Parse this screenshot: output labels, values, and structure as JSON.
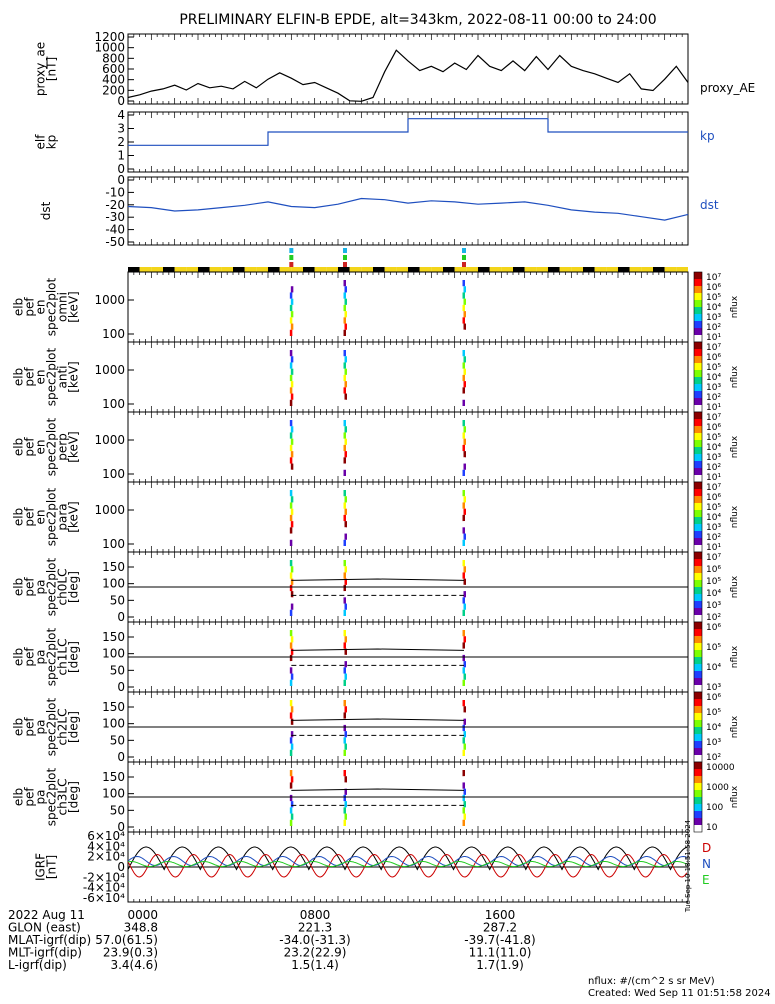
{
  "title": "PRELIMINARY ELFIN-B EPDE, alt=343km, 2022-08-11 00:00 to 24:00",
  "panels": [
    {
      "id": "proxy",
      "ylabel": [
        "proxy_ae",
        "[nT]"
      ],
      "ticks": [
        "1200",
        "1000",
        "800",
        "600",
        "400",
        "200",
        "0"
      ],
      "right_label": "proxy_AE",
      "right_color": "#000000"
    },
    {
      "id": "kp",
      "ylabel": [
        "elf",
        "kp"
      ],
      "ticks": [
        "4",
        "3",
        "2",
        "1",
        "0"
      ],
      "right_label": "kp",
      "right_color": "#1f4fbf"
    },
    {
      "id": "dst",
      "ylabel": [
        "dst"
      ],
      "ticks": [
        "0",
        "-10",
        "-20",
        "-30",
        "-40",
        "-50"
      ],
      "right_label": "dst",
      "right_color": "#1f4fbf"
    }
  ],
  "spec_panels": [
    {
      "id": "omni",
      "ylabel": [
        "elb",
        "pef",
        "en",
        "spec2plot",
        "omni",
        "[keV]"
      ],
      "ticks": [
        "1000",
        "100"
      ]
    },
    {
      "id": "anti",
      "ylabel": [
        "elb",
        "pef",
        "en",
        "spec2plot",
        "anti",
        "[keV]"
      ],
      "ticks": [
        "1000",
        "100"
      ]
    },
    {
      "id": "perp",
      "ylabel": [
        "elb",
        "pef",
        "en",
        "spec2plot",
        "perp",
        "[keV]"
      ],
      "ticks": [
        "1000",
        "100"
      ]
    },
    {
      "id": "para",
      "ylabel": [
        "elb",
        "pef",
        "en",
        "spec2plot",
        "para",
        "[keV]"
      ],
      "ticks": [
        "1000",
        "100"
      ]
    },
    {
      "id": "ch0LC",
      "ylabel": [
        "elb",
        "pef",
        "pa",
        "spec2plot",
        "ch0LC",
        "[deg]"
      ],
      "ticks": [
        "150",
        "100",
        "50",
        "0"
      ]
    },
    {
      "id": "ch1LC",
      "ylabel": [
        "elb",
        "pef",
        "pa",
        "spec2plot",
        "ch1LC",
        "[deg]"
      ],
      "ticks": [
        "150",
        "100",
        "50",
        "0"
      ]
    },
    {
      "id": "ch2LC",
      "ylabel": [
        "elb",
        "pef",
        "pa",
        "spec2plot",
        "ch2LC",
        "[deg]"
      ],
      "ticks": [
        "150",
        "100",
        "50",
        "0"
      ]
    },
    {
      "id": "ch3LC",
      "ylabel": [
        "elb",
        "pef",
        "pa",
        "spec2plot",
        "ch3LC",
        "[deg]"
      ],
      "ticks": [
        "150",
        "100",
        "50",
        "0"
      ]
    }
  ],
  "colorbars": [
    {
      "ticks": [
        "10⁷",
        "10⁶",
        "10⁵",
        "10⁴",
        "10³",
        "10²",
        "10¹"
      ],
      "label": "nflux"
    },
    {
      "ticks": [
        "10⁷",
        "10⁶",
        "10⁵",
        "10⁴",
        "10³",
        "10²",
        "10¹"
      ],
      "label": "nflux"
    },
    {
      "ticks": [
        "10⁷",
        "10⁶",
        "10⁵",
        "10⁴",
        "10³",
        "10²",
        "10¹"
      ],
      "label": "nflux"
    },
    {
      "ticks": [
        "10⁷",
        "10⁶",
        "10⁵",
        "10⁴",
        "10³",
        "10²",
        "10¹"
      ],
      "label": "nflux"
    },
    {
      "ticks": [
        "10⁷",
        "10⁶",
        "10⁵",
        "10⁴",
        "10³",
        "10²"
      ],
      "label": "nflux"
    },
    {
      "ticks": [
        "10⁶",
        "10⁵",
        "10⁴",
        "10³"
      ],
      "label": "nflux"
    },
    {
      "ticks": [
        "10⁶",
        "10⁵",
        "10⁴",
        "10³",
        "10²"
      ],
      "label": "nflux"
    },
    {
      "ticks": [
        "10000",
        "1000",
        "100",
        "10"
      ],
      "label": "nflux"
    }
  ],
  "igrf": {
    "ylabel": [
      "IGRF",
      "[nT]"
    ],
    "ticks": [
      "6×10⁴",
      "4×10⁴",
      "2×10⁴",
      "0",
      "-2×10⁴",
      "-4×10⁴",
      "-6×10⁴"
    ],
    "legend": [
      {
        "label": "D",
        "color": "#cc0000"
      },
      {
        "label": "N",
        "color": "#1f4fbf"
      },
      {
        "label": "E",
        "color": "#22cc22"
      }
    ],
    "side_stamp": "Tue Sep 10 18:51:58 2024"
  },
  "xaxis": {
    "rows": [
      {
        "label": "2022 Aug 11",
        "values": [
          "0000",
          "0800",
          "1600"
        ]
      },
      {
        "label": "GLON (east)",
        "values": [
          "348.8",
          "221.3",
          "287.2"
        ]
      },
      {
        "label": "MLAT-igrf(dip)",
        "values": [
          "57.0(61.5)",
          "-34.0(-31.3)",
          "-39.7(-41.8)"
        ]
      },
      {
        "label": "MLT-igrf(dip)",
        "values": [
          "23.9(0.3)",
          "23.2(22.9)",
          "11.1(11.0)"
        ]
      },
      {
        "label": "L-igrf(dip)",
        "values": [
          "3.4(4.6)",
          "1.5(1.4)",
          "1.7(1.9)"
        ]
      }
    ]
  },
  "footer": {
    "units": "nflux: #/(cm^2 s sr MeV)",
    "created": "Created: Wed Sep 11 01:51:58 2024"
  },
  "chart_data": {
    "type": "line",
    "x_range_hours": [
      0,
      24
    ],
    "proxy_ae": {
      "ylim": [
        0,
        1300
      ],
      "x": [
        0,
        0.5,
        1,
        1.5,
        2,
        2.5,
        3,
        3.5,
        4,
        4.5,
        5,
        5.5,
        6,
        6.5,
        7,
        7.5,
        8,
        8.5,
        9,
        9.5,
        10,
        10.5,
        11,
        11.5,
        12,
        12.5,
        13,
        13.5,
        14,
        14.5,
        15,
        15.5,
        16,
        16.5,
        17,
        17.5,
        18,
        18.5,
        19,
        19.5,
        20,
        20.5,
        21,
        21.5,
        22,
        22.5,
        23,
        23.5,
        24
      ],
      "y": [
        120,
        170,
        240,
        280,
        350,
        260,
        380,
        300,
        330,
        280,
        420,
        300,
        460,
        580,
        480,
        360,
        400,
        300,
        200,
        60,
        50,
        120,
        600,
        1000,
        800,
        620,
        700,
        600,
        760,
        640,
        900,
        700,
        620,
        800,
        620,
        880,
        640,
        900,
        700,
        620,
        560,
        480,
        400,
        560,
        280,
        250,
        460,
        700,
        400
      ]
    },
    "kp": {
      "ylim": [
        0,
        4.5
      ],
      "x": [
        0,
        3,
        3,
        6,
        6,
        9,
        9,
        12,
        12,
        15,
        15,
        18,
        18,
        21,
        21,
        24
      ],
      "y": [
        2,
        2,
        2,
        2,
        3,
        3,
        3,
        3,
        4,
        4,
        4,
        4,
        3,
        3,
        3,
        3
      ]
    },
    "dst": {
      "ylim": [
        -55,
        5
      ],
      "x": [
        0,
        1,
        2,
        3,
        4,
        5,
        6,
        7,
        8,
        9,
        10,
        11,
        12,
        13,
        14,
        15,
        16,
        17,
        18,
        19,
        20,
        21,
        22,
        23,
        24
      ],
      "y": [
        -21,
        -22,
        -25,
        -24,
        -22,
        -20,
        -17,
        -21,
        -22,
        -19,
        -14,
        -15,
        -18,
        -16,
        -17,
        -19,
        -18,
        -17,
        -20,
        -24,
        -26,
        -27,
        -30,
        -33,
        -28
      ]
    },
    "pa_levels": {
      "upper": 110,
      "lower": 65,
      "mid": 90
    },
    "crossings_hours": [
      7,
      9.3,
      14.4
    ],
    "igrf_ylim": [
      -70000,
      70000
    ]
  }
}
